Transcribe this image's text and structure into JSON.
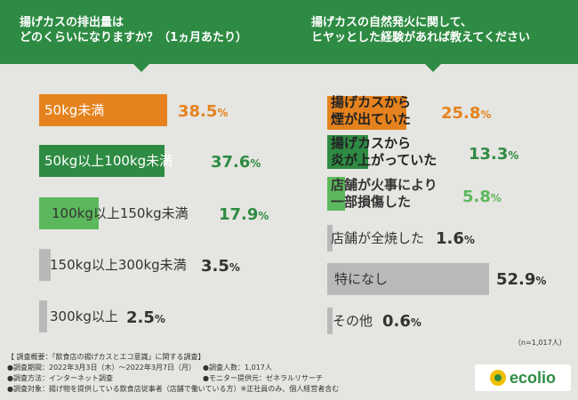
{
  "header": {
    "left_question": [
      "揚げカスの排出量は",
      "どのくらいになりますか？（1ヵ月あたり）"
    ],
    "right_question": [
      "揚げカスの自然発火に関して、",
      "ヒヤッとした経験があれば教えてください"
    ]
  },
  "left_chart": {
    "items": [
      {
        "label": "50kg未満",
        "pct_int": "38.",
        "pct_dec": "5",
        "pct_sign": "%",
        "value": 38.5,
        "color": "#e5821d"
      },
      {
        "label": "50kg以上100kg未満",
        "pct_int": "37.",
        "pct_dec": "6",
        "pct_sign": "%",
        "value": 37.6,
        "color": "#2e8b43"
      },
      {
        "label": "100kg以上150kg未満",
        "pct_int": "17.",
        "pct_dec": "9",
        "pct_sign": "%",
        "value": 17.9,
        "color": "#5cb85c"
      },
      {
        "label": "150kg以上300kg未満",
        "pct_int": "3.",
        "pct_dec": "5",
        "pct_sign": "%",
        "value": 3.5,
        "color": "#b9b9b9"
      },
      {
        "label": "300kg以上",
        "pct_int": "2.",
        "pct_dec": "5",
        "pct_sign": "%",
        "value": 2.5,
        "color": "#b9b9b9"
      }
    ]
  },
  "right_chart": {
    "items": [
      {
        "label": [
          "揚げカスから",
          "煙が出ていた"
        ],
        "pct_int": "25.",
        "pct_dec": "8",
        "pct_sign": "%",
        "value": 25.8,
        "color": "#e5821d"
      },
      {
        "label": [
          "揚げカスから",
          "炎が上がっていた"
        ],
        "pct_int": "13.",
        "pct_dec": "3",
        "pct_sign": "%",
        "value": 13.3,
        "color": "#2e8b43"
      },
      {
        "label": [
          "店舗が火事により",
          "一部損傷した"
        ],
        "pct_int": "5.",
        "pct_dec": "8",
        "pct_sign": "%",
        "value": 5.8,
        "color": "#5cb85c"
      },
      {
        "label": [
          "店舗が全焼した"
        ],
        "pct_int": "1.",
        "pct_dec": "6",
        "pct_sign": "%",
        "value": 1.6,
        "color": "#b9b9b9"
      },
      {
        "label": [
          "特になし"
        ],
        "pct_int": "52.",
        "pct_dec": "9",
        "pct_sign": "%",
        "value": 52.9,
        "color": "#b9b9b9"
      },
      {
        "label": [
          "その他"
        ],
        "pct_int": "0.",
        "pct_dec": "6",
        "pct_sign": "%",
        "value": 0.6,
        "color": "#b9b9b9"
      }
    ],
    "sample": "（n=1,017人）"
  },
  "notes": {
    "line1": "【 調査概要：「飲食店の揚げカスとエコ意識」に関する調査】",
    "line2a": "●調査期間：2022年3月3日（木）～2022年3月7日（月）",
    "line2b": "●調査人数：1,017人",
    "line3a": "●調査方法：インターネット調査",
    "line3b": "●モニター提供元：ゼネラルリサーチ",
    "line4": "●調査対象：揚げ物を提供している飲食店従事者（店舗で働いている方）※正社員のみ、個人経営者含む"
  },
  "logo": {
    "text": "ecolio"
  }
}
